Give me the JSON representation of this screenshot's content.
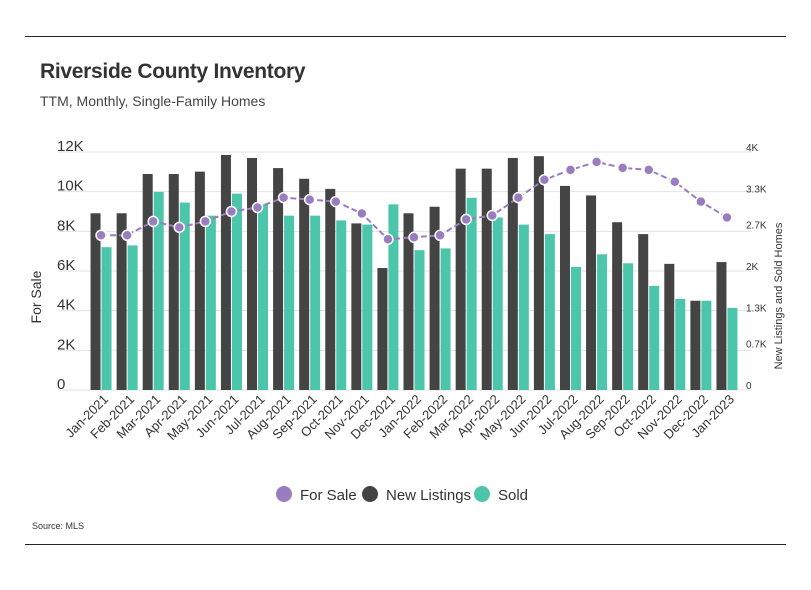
{
  "title": "Riverside County Inventory",
  "subtitle": "TTM, Monthly, Single-Family Homes",
  "source": "Source: MLS",
  "chart_data": {
    "type": "bar",
    "categories": [
      "Jan-2021",
      "Feb-2021",
      "Mar-2021",
      "Apr-2021",
      "May-2021",
      "Jun-2021",
      "Jul-2021",
      "Aug-2021",
      "Sep-2021",
      "Oct-2021",
      "Nov-2021",
      "Dec-2021",
      "Jan-2022",
      "Feb-2022",
      "Mar-2022",
      "Apr-2022",
      "May-2022",
      "Jun-2022",
      "Jul-2022",
      "Aug-2022",
      "Sep-2022",
      "Oct-2022",
      "Nov-2022",
      "Dec-2022",
      "Jan-2023"
    ],
    "ylabel": "For Sale",
    "y2label": "New Listings and Sold Homes",
    "ylim": [
      0,
      12000
    ],
    "y2lim": [
      0,
      4000
    ],
    "y_ticks": [
      0,
      2000,
      4000,
      6000,
      8000,
      10000,
      12000
    ],
    "y_tick_labels": [
      "0",
      "2K",
      "4K",
      "6K",
      "8K",
      "10K",
      "12K"
    ],
    "y2_ticks": [
      0,
      700,
      1300,
      2000,
      2700,
      3300,
      4000
    ],
    "y2_tick_labels": [
      "0",
      "0.7K",
      "1.3K",
      "2K",
      "2.7K",
      "3.3K",
      "4K"
    ],
    "series": [
      {
        "name": "For Sale",
        "type": "line",
        "axis": "left",
        "color": "#9a7dbf",
        "values": [
          7800,
          7800,
          8500,
          8200,
          8500,
          9000,
          9200,
          9700,
          9600,
          9500,
          8900,
          7600,
          7700,
          7800,
          8600,
          8800,
          9700,
          10600,
          11100,
          11500,
          11200,
          11100,
          10500,
          9500,
          8700
        ]
      },
      {
        "name": "New Listings",
        "type": "bar",
        "axis": "right",
        "color": "#444444",
        "values": [
          2970,
          2970,
          3630,
          3630,
          3670,
          3950,
          3900,
          3730,
          3550,
          3380,
          2800,
          2050,
          2970,
          3080,
          3720,
          3720,
          3900,
          3930,
          3430,
          3270,
          2820,
          2620,
          2120,
          1500,
          2150
        ]
      },
      {
        "name": "Sold",
        "type": "bar",
        "axis": "right",
        "color": "#4cc6aa",
        "values": [
          2400,
          2430,
          3330,
          3150,
          2930,
          3300,
          3120,
          2930,
          2930,
          2850,
          2780,
          3120,
          2350,
          2380,
          3230,
          2900,
          2780,
          2620,
          2070,
          2280,
          2130,
          1750,
          1530,
          1500,
          1380
        ]
      }
    ],
    "legend": {
      "position": "bottom-center",
      "entries": [
        "For Sale",
        "New Listings",
        "Sold"
      ]
    }
  }
}
